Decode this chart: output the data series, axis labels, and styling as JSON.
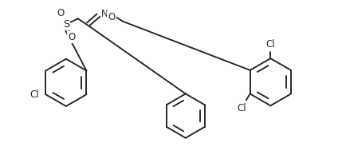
{
  "bg_color": "#ffffff",
  "line_color": "#2a2a2a",
  "line_width": 1.4,
  "font_size": 8.5,
  "figsize": [
    4.34,
    1.94
  ],
  "dpi": 100,
  "xlim": [
    0,
    434
  ],
  "ylim": [
    0,
    194
  ]
}
